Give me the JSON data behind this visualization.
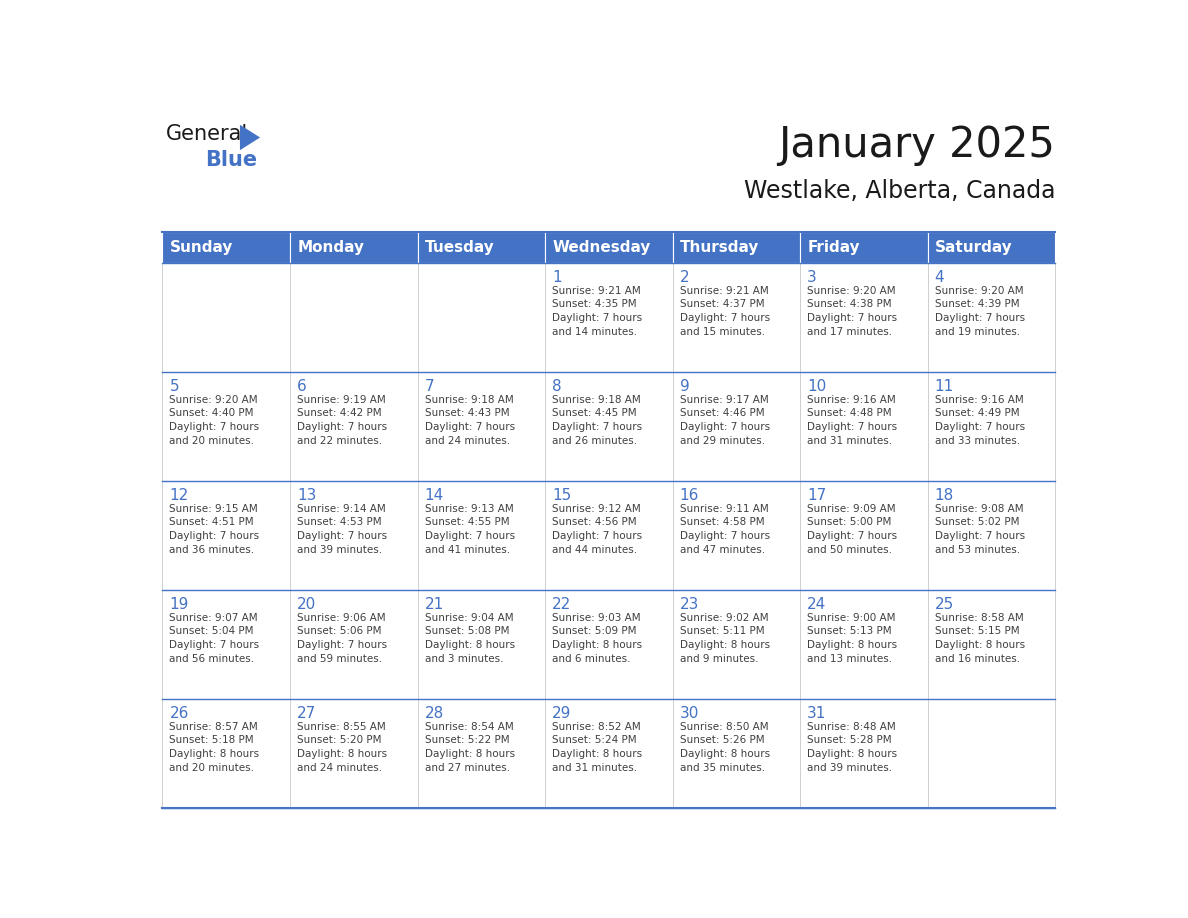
{
  "title": "January 2025",
  "subtitle": "Westlake, Alberta, Canada",
  "header_bg": "#4472C4",
  "header_text_color": "#FFFFFF",
  "border_color": "#4472C4",
  "day_number_color": "#4472C4",
  "cell_text_color": "#404040",
  "days_of_week": [
    "Sunday",
    "Monday",
    "Tuesday",
    "Wednesday",
    "Thursday",
    "Friday",
    "Saturday"
  ],
  "calendar_data": [
    [
      {
        "day": "",
        "info": ""
      },
      {
        "day": "",
        "info": ""
      },
      {
        "day": "",
        "info": ""
      },
      {
        "day": "1",
        "info": "Sunrise: 9:21 AM\nSunset: 4:35 PM\nDaylight: 7 hours\nand 14 minutes."
      },
      {
        "day": "2",
        "info": "Sunrise: 9:21 AM\nSunset: 4:37 PM\nDaylight: 7 hours\nand 15 minutes."
      },
      {
        "day": "3",
        "info": "Sunrise: 9:20 AM\nSunset: 4:38 PM\nDaylight: 7 hours\nand 17 minutes."
      },
      {
        "day": "4",
        "info": "Sunrise: 9:20 AM\nSunset: 4:39 PM\nDaylight: 7 hours\nand 19 minutes."
      }
    ],
    [
      {
        "day": "5",
        "info": "Sunrise: 9:20 AM\nSunset: 4:40 PM\nDaylight: 7 hours\nand 20 minutes."
      },
      {
        "day": "6",
        "info": "Sunrise: 9:19 AM\nSunset: 4:42 PM\nDaylight: 7 hours\nand 22 minutes."
      },
      {
        "day": "7",
        "info": "Sunrise: 9:18 AM\nSunset: 4:43 PM\nDaylight: 7 hours\nand 24 minutes."
      },
      {
        "day": "8",
        "info": "Sunrise: 9:18 AM\nSunset: 4:45 PM\nDaylight: 7 hours\nand 26 minutes."
      },
      {
        "day": "9",
        "info": "Sunrise: 9:17 AM\nSunset: 4:46 PM\nDaylight: 7 hours\nand 29 minutes."
      },
      {
        "day": "10",
        "info": "Sunrise: 9:16 AM\nSunset: 4:48 PM\nDaylight: 7 hours\nand 31 minutes."
      },
      {
        "day": "11",
        "info": "Sunrise: 9:16 AM\nSunset: 4:49 PM\nDaylight: 7 hours\nand 33 minutes."
      }
    ],
    [
      {
        "day": "12",
        "info": "Sunrise: 9:15 AM\nSunset: 4:51 PM\nDaylight: 7 hours\nand 36 minutes."
      },
      {
        "day": "13",
        "info": "Sunrise: 9:14 AM\nSunset: 4:53 PM\nDaylight: 7 hours\nand 39 minutes."
      },
      {
        "day": "14",
        "info": "Sunrise: 9:13 AM\nSunset: 4:55 PM\nDaylight: 7 hours\nand 41 minutes."
      },
      {
        "day": "15",
        "info": "Sunrise: 9:12 AM\nSunset: 4:56 PM\nDaylight: 7 hours\nand 44 minutes."
      },
      {
        "day": "16",
        "info": "Sunrise: 9:11 AM\nSunset: 4:58 PM\nDaylight: 7 hours\nand 47 minutes."
      },
      {
        "day": "17",
        "info": "Sunrise: 9:09 AM\nSunset: 5:00 PM\nDaylight: 7 hours\nand 50 minutes."
      },
      {
        "day": "18",
        "info": "Sunrise: 9:08 AM\nSunset: 5:02 PM\nDaylight: 7 hours\nand 53 minutes."
      }
    ],
    [
      {
        "day": "19",
        "info": "Sunrise: 9:07 AM\nSunset: 5:04 PM\nDaylight: 7 hours\nand 56 minutes."
      },
      {
        "day": "20",
        "info": "Sunrise: 9:06 AM\nSunset: 5:06 PM\nDaylight: 7 hours\nand 59 minutes."
      },
      {
        "day": "21",
        "info": "Sunrise: 9:04 AM\nSunset: 5:08 PM\nDaylight: 8 hours\nand 3 minutes."
      },
      {
        "day": "22",
        "info": "Sunrise: 9:03 AM\nSunset: 5:09 PM\nDaylight: 8 hours\nand 6 minutes."
      },
      {
        "day": "23",
        "info": "Sunrise: 9:02 AM\nSunset: 5:11 PM\nDaylight: 8 hours\nand 9 minutes."
      },
      {
        "day": "24",
        "info": "Sunrise: 9:00 AM\nSunset: 5:13 PM\nDaylight: 8 hours\nand 13 minutes."
      },
      {
        "day": "25",
        "info": "Sunrise: 8:58 AM\nSunset: 5:15 PM\nDaylight: 8 hours\nand 16 minutes."
      }
    ],
    [
      {
        "day": "26",
        "info": "Sunrise: 8:57 AM\nSunset: 5:18 PM\nDaylight: 8 hours\nand 20 minutes."
      },
      {
        "day": "27",
        "info": "Sunrise: 8:55 AM\nSunset: 5:20 PM\nDaylight: 8 hours\nand 24 minutes."
      },
      {
        "day": "28",
        "info": "Sunrise: 8:54 AM\nSunset: 5:22 PM\nDaylight: 8 hours\nand 27 minutes."
      },
      {
        "day": "29",
        "info": "Sunrise: 8:52 AM\nSunset: 5:24 PM\nDaylight: 8 hours\nand 31 minutes."
      },
      {
        "day": "30",
        "info": "Sunrise: 8:50 AM\nSunset: 5:26 PM\nDaylight: 8 hours\nand 35 minutes."
      },
      {
        "day": "31",
        "info": "Sunrise: 8:48 AM\nSunset: 5:28 PM\nDaylight: 8 hours\nand 39 minutes."
      },
      {
        "day": "",
        "info": ""
      }
    ]
  ]
}
